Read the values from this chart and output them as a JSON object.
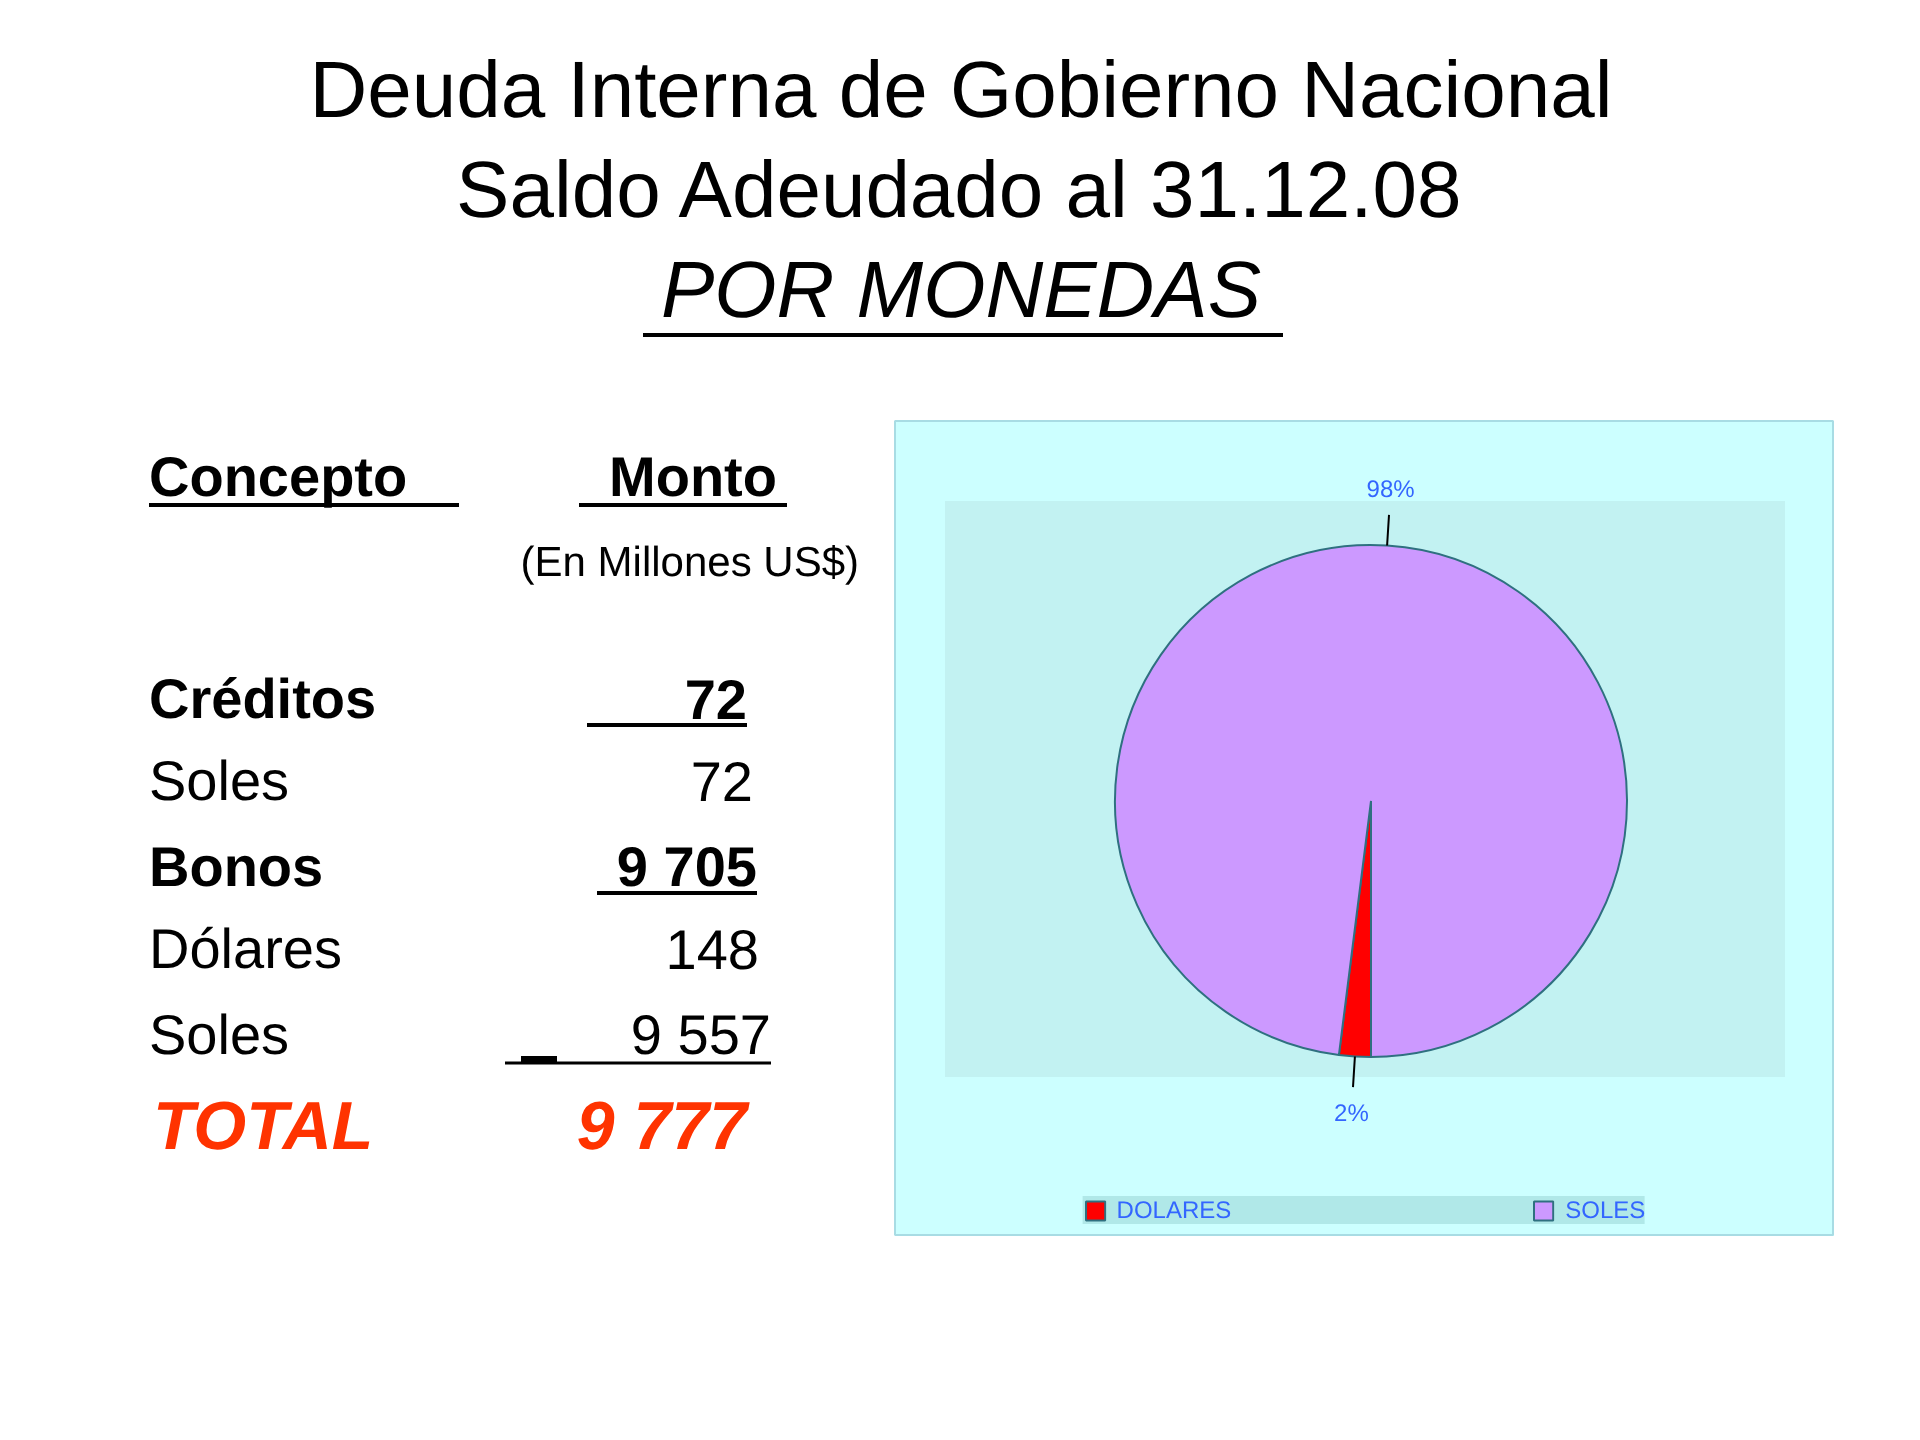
{
  "chart_data": [
    {
      "type": "other",
      "title": "Deuda Interna de Gobierno Nacional\nSaldo Adeudado al 31.12.08",
      "subtitle": "POR MONEDAS",
      "annotations": [
        "Concepto",
        "Monto",
        "(En Millones US$)",
        "Créditos",
        "72",
        "Soles",
        "72",
        "Bonos",
        "9 705",
        "Dólares",
        "148",
        "Soles",
        "9 557",
        "TOTAL",
        "9 777"
      ]
    },
    {
      "type": "pie",
      "categories": [
        "DOLARES",
        "SOLES"
      ],
      "values": [
        2,
        98
      ],
      "colors": [
        "#ff0000",
        "#cc99ff"
      ],
      "value_labels": [
        "2%",
        "98%"
      ],
      "legend": "bottom"
    }
  ]
}
